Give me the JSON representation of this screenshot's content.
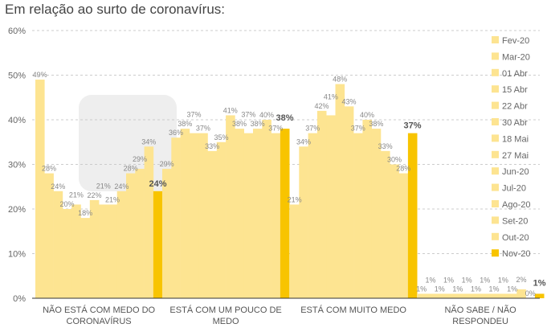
{
  "title": "Em relação ao surto de coronavírus:",
  "chart_data": {
    "type": "bar",
    "title": "Em relação ao surto de coronavírus:",
    "categories": [
      [
        "NÃO ESTÁ COM MEDO DO",
        "CORONAVÍRUS"
      ],
      [
        "ESTÁ COM UM POUCO DE",
        "MEDO"
      ],
      [
        "ESTÁ COM MUITO MEDO"
      ],
      [
        "NÃO SABE / NÃO",
        "RESPONDEU"
      ]
    ],
    "series_names": [
      "Fev-20",
      "Mar-20",
      "01 Abr",
      "15 Abr",
      "22 Abr",
      "30 Abr",
      "18 Mai",
      "27 Mai",
      "Jun-20",
      "Jul-20",
      "Ago-20",
      "Set-20",
      "Out-20",
      "Nov-20"
    ],
    "values": [
      [
        49,
        28,
        24,
        20,
        21,
        18,
        22,
        21,
        21,
        24,
        28,
        29,
        34,
        24
      ],
      [
        29,
        36,
        38,
        37,
        37,
        33,
        35,
        41,
        38,
        37,
        38,
        40,
        37,
        38
      ],
      [
        21,
        34,
        37,
        42,
        41,
        48,
        43,
        37,
        40,
        38,
        33,
        30,
        28,
        37
      ],
      [
        1,
        1,
        1,
        1,
        1,
        1,
        1,
        1,
        1,
        1,
        1,
        2,
        0,
        1
      ]
    ],
    "yticks": [
      "0%",
      "10%",
      "20%",
      "30%",
      "40%",
      "50%",
      "60%"
    ],
    "ylim": [
      0,
      60
    ],
    "grid": true,
    "legend_position": "right",
    "colors": {
      "previous": "#fde491",
      "latest": "#f8c400"
    }
  }
}
